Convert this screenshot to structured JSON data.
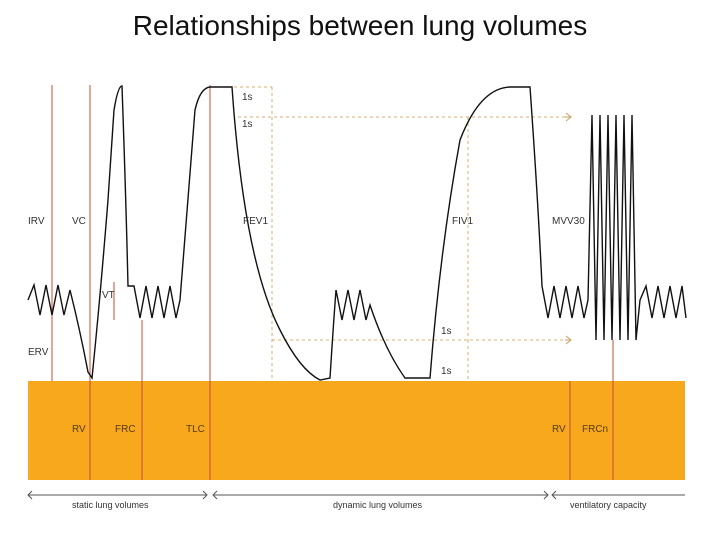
{
  "title": "Relationships between lung volumes",
  "colors": {
    "band": "#f7a81c",
    "marker_line": "#c0503a",
    "dashed_line": "#d8b070",
    "trace": "#111111"
  },
  "labels": {
    "irv": "IRV",
    "vc": "VC",
    "vt": "VT",
    "erv": "ERV",
    "fev1": "FEV1",
    "fiv1": "FIV1",
    "mvv30": "MVV30",
    "one_s_top_a": "1s",
    "one_s_top_b": "1s",
    "one_s_bottom_a": "1s",
    "one_s_bottom_b": "1s"
  },
  "band_labels": {
    "rv_left": "RV",
    "frc": "FRC",
    "tlc": "TLC",
    "rv_right": "RV",
    "frcn": "FRCn"
  },
  "footer": {
    "static": "static lung volumes",
    "dynamic": "dynamic lung volumes",
    "ventilatory": "ventilatory capacity"
  }
}
